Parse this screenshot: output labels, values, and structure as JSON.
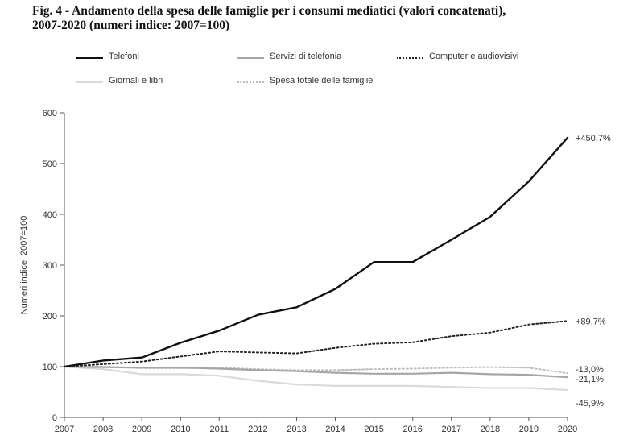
{
  "title_line1": "Fig. 4 - Andamento della spesa delle famiglie per i consumi mediatici (valori concatenati),",
  "title_line2": "2007-2020 (numeri indice: 2007=100)",
  "chart_data": {
    "type": "line",
    "title": "Fig. 4 - Andamento della spesa delle famiglie per i consumi mediatici (valori concatenati), 2007-2020 (numeri indice: 2007=100)",
    "xlabel": "",
    "ylabel": "Numeri indice: 2007=100",
    "ylim": [
      0,
      600
    ],
    "yticks": [
      0,
      100,
      200,
      300,
      400,
      500,
      600
    ],
    "x": [
      2007,
      2008,
      2009,
      2010,
      2011,
      2012,
      2013,
      2014,
      2015,
      2016,
      2017,
      2018,
      2019,
      2020
    ],
    "grid": false,
    "legend_position": "top",
    "series": [
      {
        "name": "Telefoni",
        "style": "solid-thick",
        "color": "#111111",
        "values": [
          100,
          112,
          118,
          147,
          171,
          202,
          217,
          253,
          306,
          306,
          350,
          395,
          465,
          551
        ],
        "end_label": "+450,7%"
      },
      {
        "name": "Servizi di telefonia",
        "style": "solid",
        "color": "#a6a6a6",
        "values": [
          100,
          99,
          98,
          98,
          96,
          93,
          91,
          88,
          86,
          86,
          88,
          85,
          84,
          79
        ],
        "end_label": "-21,1%"
      },
      {
        "name": "Computer e audiovisivi",
        "style": "dotted",
        "color": "#222222",
        "values": [
          100,
          105,
          110,
          120,
          130,
          128,
          126,
          137,
          145,
          148,
          160,
          167,
          183,
          190
        ],
        "end_label": "+89,7%"
      },
      {
        "name": "Giornali e libri",
        "style": "solid",
        "color": "#dadada",
        "values": [
          100,
          95,
          85,
          85,
          82,
          72,
          65,
          62,
          62,
          62,
          60,
          58,
          58,
          54
        ],
        "end_label": "-45,9%"
      },
      {
        "name": "Spesa totale delle famiglie",
        "style": "dotted",
        "color": "#bdbdbd",
        "values": [
          100,
          100,
          97,
          97,
          98,
          95,
          93,
          93,
          95,
          96,
          98,
          99,
          98,
          87
        ],
        "end_label": "-13,0%"
      }
    ]
  }
}
